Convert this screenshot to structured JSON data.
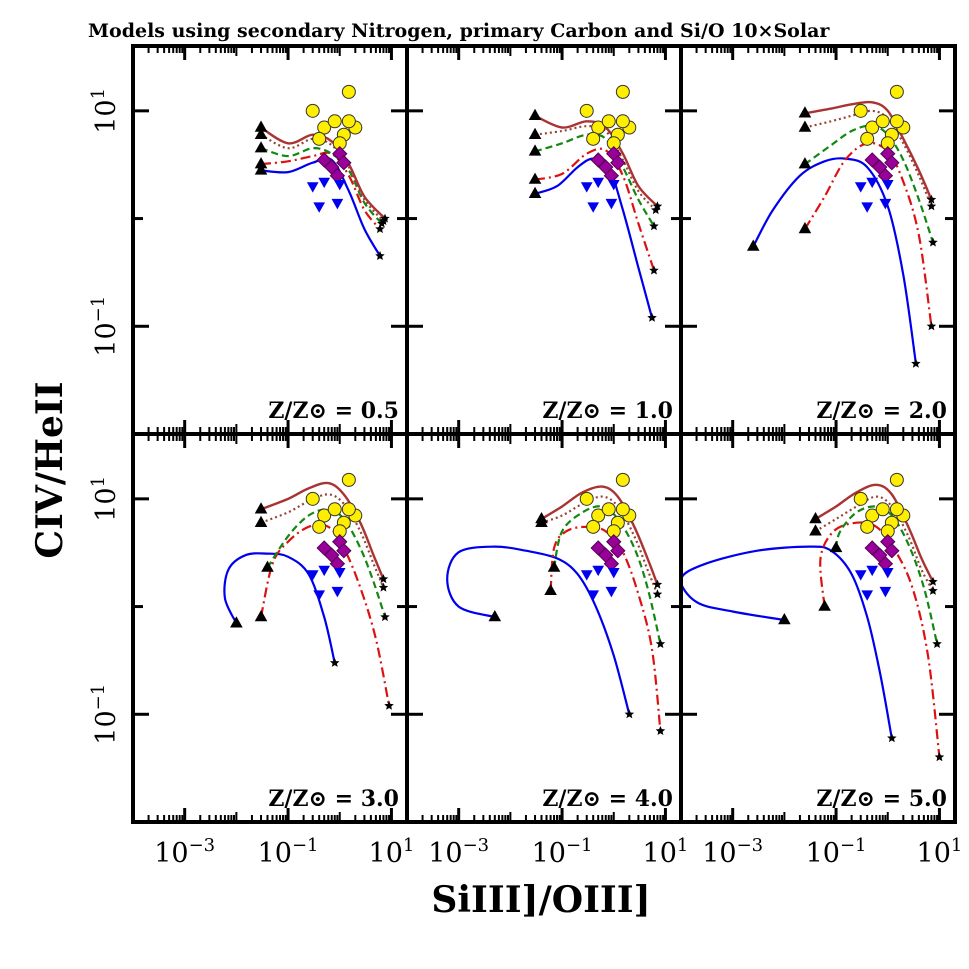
{
  "figure": {
    "title": "Models using secondary Nitrogen, primary Carbon and Si/O 10×Solar",
    "xlabel": "SiIII]/OIII]",
    "ylabel": "CIV/HeII"
  },
  "chart_data": {
    "type": "line",
    "x_scale": "log",
    "y_scale": "log",
    "xlim": [
      0.0001,
      20
    ],
    "ylim": [
      0.01,
      40
    ],
    "x_tick_labels": [
      "10^-3",
      "10^-1",
      "10^1"
    ],
    "y_tick_labels": [
      "10^1",
      "10^-1"
    ],
    "grid": false,
    "colors": {
      "blue": "#0000ee",
      "red": "#dd1111",
      "green": "#118811",
      "brown_dotted": "#994433",
      "brown": "#aa3333",
      "yellow": "#ffee00",
      "purple": "#990099",
      "triangle": "#000000"
    },
    "observed": {
      "circles": [
        [
          1.5,
          15
        ],
        [
          0.3,
          10
        ],
        [
          0.5,
          7
        ],
        [
          1.2,
          6
        ],
        [
          2.0,
          7
        ],
        [
          0.8,
          8
        ],
        [
          1.5,
          8
        ],
        [
          0.4,
          5.5
        ],
        [
          1.0,
          5
        ]
      ],
      "diamonds": [
        [
          1.0,
          4
        ],
        [
          0.7,
          3
        ],
        [
          0.5,
          3.5
        ],
        [
          1.2,
          3.3
        ],
        [
          0.9,
          2.5
        ]
      ],
      "triangles_down": [
        [
          0.3,
          2
        ],
        [
          0.5,
          2.2
        ],
        [
          1.0,
          2.1
        ],
        [
          0.4,
          1.3
        ],
        [
          0.9,
          1.4
        ]
      ]
    },
    "panels": [
      {
        "id": "0.5",
        "label": "Z/Z⊙ = 0.5",
        "series": [
          {
            "style": "blue",
            "start": [
              0.03,
              2.8
            ],
            "x": [
              0.03,
              0.1,
              0.3,
              0.7,
              1.5,
              3.0,
              6.0
            ],
            "y": [
              2.8,
              2.7,
              3.3,
              3.5,
              1.8,
              0.8,
              0.45
            ]
          },
          {
            "style": "red",
            "start": [
              0.03,
              3.2
            ],
            "x": [
              0.03,
              0.1,
              0.3,
              0.7,
              1.5,
              3.0,
              6.0
            ],
            "y": [
              3.2,
              3.4,
              3.8,
              4.0,
              2.5,
              1.2,
              0.8
            ]
          },
          {
            "style": "green",
            "start": [
              0.03,
              4.5
            ],
            "x": [
              0.03,
              0.1,
              0.3,
              0.7,
              1.5,
              3.0,
              6.5
            ],
            "y": [
              4.5,
              3.8,
              4.5,
              4.0,
              2.8,
              1.4,
              0.9
            ]
          },
          {
            "style": "brown_dotted",
            "start": [
              0.03,
              6.0
            ],
            "x": [
              0.03,
              0.1,
              0.3,
              0.7,
              1.5,
              3.0,
              7.0
            ],
            "y": [
              6.0,
              4.5,
              5.5,
              4.8,
              3.0,
              1.5,
              0.95
            ]
          },
          {
            "style": "brown",
            "start": [
              0.03,
              7.0
            ],
            "x": [
              0.03,
              0.1,
              0.3,
              0.7,
              1.5,
              3.0,
              7.5
            ],
            "y": [
              7.0,
              5.0,
              6.0,
              5.2,
              3.2,
              1.6,
              1.0
            ]
          }
        ]
      },
      {
        "id": "1.0",
        "label": "Z/Z⊙ = 1.0",
        "series": [
          {
            "style": "blue",
            "start": [
              0.03,
              1.7
            ],
            "x": [
              0.03,
              0.08,
              0.2,
              0.4,
              0.8,
              1.5,
              3.0,
              5.5
            ],
            "y": [
              1.7,
              2.0,
              3.0,
              3.6,
              3.0,
              1.2,
              0.35,
              0.12
            ]
          },
          {
            "style": "red",
            "start": [
              0.03,
              2.3
            ],
            "x": [
              0.03,
              0.1,
              0.3,
              0.7,
              1.5,
              3.0,
              6.0
            ],
            "y": [
              2.3,
              2.6,
              4.0,
              4.3,
              2.5,
              0.9,
              0.33
            ]
          },
          {
            "style": "green",
            "start": [
              0.03,
              4.2
            ],
            "x": [
              0.03,
              0.1,
              0.3,
              0.7,
              1.5,
              3.0,
              6.0
            ],
            "y": [
              4.2,
              5.0,
              6.0,
              5.5,
              3.0,
              1.5,
              0.85
            ]
          },
          {
            "style": "brown_dotted",
            "start": [
              0.03,
              6.0
            ],
            "x": [
              0.03,
              0.1,
              0.3,
              0.7,
              1.5,
              3.0,
              6.5
            ],
            "y": [
              6.0,
              6.5,
              7.2,
              6.5,
              3.5,
              1.8,
              1.2
            ]
          },
          {
            "style": "brown",
            "start": [
              0.03,
              9.0
            ],
            "x": [
              0.03,
              0.1,
              0.3,
              0.7,
              1.5,
              3.0,
              7.0
            ],
            "y": [
              9.0,
              7.0,
              8.0,
              7.0,
              4.0,
              2.0,
              1.3
            ]
          }
        ]
      },
      {
        "id": "2.0",
        "label": "Z/Z⊙ = 2.0",
        "series": [
          {
            "style": "blue",
            "start": [
              0.0025,
              0.55
            ],
            "x": [
              0.0025,
              0.006,
              0.02,
              0.06,
              0.15,
              0.4,
              1.0,
              2.0,
              3.5
            ],
            "y": [
              0.55,
              1.2,
              2.5,
              3.4,
              3.6,
              3.0,
              1.3,
              0.3,
              0.045
            ]
          },
          {
            "style": "red",
            "start": [
              0.025,
              0.8
            ],
            "x": [
              0.025,
              0.06,
              0.15,
              0.4,
              1.0,
              2.0,
              4.0,
              7.0
            ],
            "y": [
              0.8,
              1.6,
              3.5,
              5.0,
              4.2,
              2.2,
              0.7,
              0.1
            ]
          },
          {
            "style": "green",
            "start": [
              0.025,
              3.2
            ],
            "x": [
              0.025,
              0.08,
              0.2,
              0.5,
              1.0,
              2.0,
              4.0,
              7.5
            ],
            "y": [
              3.2,
              4.8,
              6.5,
              7.3,
              6.0,
              3.5,
              1.5,
              0.6
            ]
          },
          {
            "style": "brown_dotted",
            "start": [
              0.025,
              7.0
            ],
            "x": [
              0.025,
              0.08,
              0.2,
              0.5,
              1.0,
              2.0,
              4.0,
              7.0
            ],
            "y": [
              7.0,
              8.0,
              9.0,
              10.0,
              8.5,
              5.0,
              2.5,
              1.3
            ]
          },
          {
            "style": "brown",
            "start": [
              0.025,
              9.5
            ],
            "x": [
              0.025,
              0.08,
              0.2,
              0.5,
              1.0,
              2.0,
              4.0,
              7.0
            ],
            "y": [
              9.5,
              10.5,
              11.5,
              12.0,
              10.0,
              5.5,
              2.8,
              1.5
            ]
          }
        ]
      },
      {
        "id": "3.0",
        "label": "Z/Z⊙ = 3.0",
        "series": [
          {
            "style": "blue",
            "start": [
              0.01,
              0.7
            ],
            "x": [
              0.01,
              0.006,
              0.007,
              0.015,
              0.04,
              0.1,
              0.25,
              0.5,
              0.8
            ],
            "y": [
              0.7,
              1.2,
              2.2,
              3.0,
              3.1,
              2.9,
              2.0,
              0.8,
              0.3
            ]
          },
          {
            "style": "red",
            "start": [
              0.03,
              0.8
            ],
            "x": [
              0.03,
              0.05,
              0.1,
              0.25,
              0.6,
              1.2,
              2.5,
              5.0,
              9.0
            ],
            "y": [
              0.8,
              2.5,
              4.0,
              5.5,
              5.5,
              3.5,
              1.5,
              0.5,
              0.12
            ]
          },
          {
            "style": "green",
            "start": [
              0.04,
              2.3
            ],
            "x": [
              0.04,
              0.1,
              0.25,
              0.6,
              1.2,
              2.5,
              4.5,
              7.5
            ],
            "y": [
              2.3,
              4.5,
              7.0,
              8.0,
              6.5,
              3.5,
              1.7,
              0.8
            ]
          },
          {
            "style": "brown_dotted",
            "start": [
              0.03,
              6.0
            ],
            "x": [
              0.03,
              0.1,
              0.25,
              0.6,
              1.2,
              2.5,
              4.5,
              7.0
            ],
            "y": [
              6.0,
              7.5,
              9.5,
              11.0,
              9.0,
              5.0,
              2.5,
              1.5
            ]
          },
          {
            "style": "brown",
            "start": [
              0.03,
              8.0
            ],
            "x": [
              0.03,
              0.1,
              0.25,
              0.6,
              1.2,
              2.5,
              4.5,
              7.0
            ],
            "y": [
              8.0,
              10.0,
              12.5,
              14.0,
              11.0,
              6.0,
              3.0,
              1.8
            ]
          }
        ]
      },
      {
        "id": "4.0",
        "label": "Z/Z⊙ = 4.0",
        "series": [
          {
            "style": "blue",
            "start": [
              0.005,
              0.8
            ],
            "x": [
              0.005,
              0.001,
              0.0006,
              0.001,
              0.005,
              0.02,
              0.08,
              0.2,
              0.45,
              1.0,
              2.0
            ],
            "y": [
              0.8,
              1.0,
              1.8,
              3.2,
              3.6,
              3.3,
              2.8,
              2.0,
              1.0,
              0.35,
              0.1
            ]
          },
          {
            "style": "red",
            "start": [
              0.06,
              1.4
            ],
            "x": [
              0.06,
              0.07,
              0.12,
              0.3,
              0.7,
              1.5,
              3.0,
              5.5,
              8.0
            ],
            "y": [
              1.4,
              3.5,
              5.0,
              5.5,
              5.0,
              3.2,
              1.3,
              0.4,
              0.07
            ]
          },
          {
            "style": "green",
            "start": [
              0.07,
              2.3
            ],
            "x": [
              0.07,
              0.1,
              0.25,
              0.6,
              1.2,
              2.5,
              4.5,
              8.0
            ],
            "y": [
              2.3,
              5.0,
              7.5,
              8.5,
              6.5,
              3.5,
              1.5,
              0.45
            ]
          },
          {
            "style": "brown_dotted",
            "start": [
              0.04,
              6.0
            ],
            "x": [
              0.04,
              0.1,
              0.25,
              0.6,
              1.2,
              2.5,
              4.5,
              7.0
            ],
            "y": [
              6.0,
              7.0,
              9.0,
              10.5,
              8.5,
              4.5,
              2.2,
              1.3
            ]
          },
          {
            "style": "brown",
            "start": [
              0.04,
              6.5
            ],
            "x": [
              0.04,
              0.1,
              0.25,
              0.6,
              1.2,
              2.5,
              4.5,
              7.0
            ],
            "y": [
              6.5,
              8.5,
              11.5,
              13.0,
              10.5,
              5.5,
              2.8,
              1.6
            ]
          }
        ]
      },
      {
        "id": "5.0",
        "label": "Z/Z⊙ = 5.0",
        "series": [
          {
            "style": "blue",
            "start": [
              0.01,
              0.75
            ],
            "x": [
              0.01,
              0.001,
              0.0002,
              0.0001,
              0.0003,
              0.003,
              0.03,
              0.08,
              0.2,
              0.4,
              0.7,
              1.2
            ],
            "y": [
              0.75,
              0.9,
              1.1,
              1.8,
              2.5,
              3.3,
              3.6,
              3.3,
              2.0,
              0.8,
              0.25,
              0.06
            ]
          },
          {
            "style": "red",
            "start": [
              0.06,
              1.0
            ],
            "x": [
              0.06,
              0.05,
              0.09,
              0.25,
              0.6,
              1.3,
              3.0,
              6.0,
              10.0
            ],
            "y": [
              1.0,
              2.8,
              5.0,
              6.0,
              5.5,
              3.5,
              1.5,
              0.35,
              0.04
            ]
          },
          {
            "style": "green",
            "start": [
              0.1,
              3.5
            ],
            "x": [
              0.1,
              0.12,
              0.25,
              0.6,
              1.2,
              2.5,
              5.0,
              9.0
            ],
            "y": [
              3.5,
              5.0,
              7.5,
              8.5,
              7.0,
              3.8,
              1.5,
              0.45
            ]
          },
          {
            "style": "brown_dotted",
            "start": [
              0.04,
              5.0
            ],
            "x": [
              0.04,
              0.1,
              0.25,
              0.6,
              1.2,
              2.5,
              4.5,
              7.5
            ],
            "y": [
              5.0,
              6.5,
              8.5,
              10.5,
              8.5,
              4.5,
              2.2,
              1.4
            ]
          },
          {
            "style": "brown",
            "start": [
              0.04,
              6.5
            ],
            "x": [
              0.04,
              0.1,
              0.25,
              0.6,
              1.2,
              2.5,
              4.5,
              7.5
            ],
            "y": [
              6.5,
              8.5,
              11.5,
              13.5,
              11.0,
              5.5,
              2.8,
              1.7
            ]
          }
        ]
      }
    ]
  }
}
